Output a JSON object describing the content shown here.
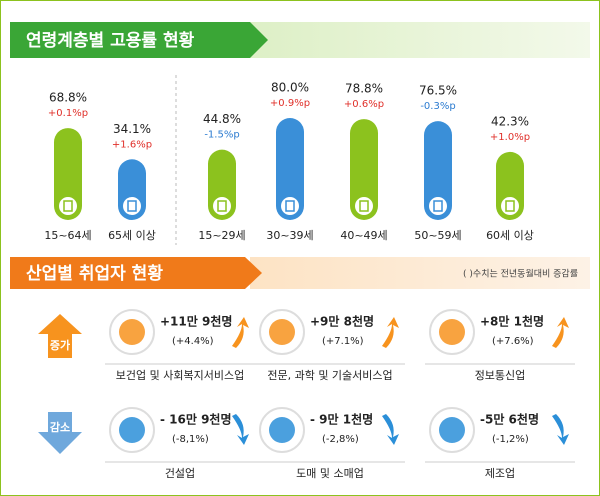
{
  "chart_data": {
    "type": "bar",
    "title": "연령계층별 고용률 현황",
    "categories": [
      "15~64세",
      "65세 이상",
      "15~29세",
      "30~39세",
      "40~49세",
      "50~59세",
      "60세 이상"
    ],
    "values": [
      68.8,
      34.1,
      44.8,
      80.0,
      78.8,
      76.5,
      42.3
    ],
    "value_labels": [
      "68.8%",
      "34.1%",
      "44.8%",
      "80.0%",
      "78.8%",
      "76.5%",
      "42.3%"
    ],
    "change_labels": [
      "+0.1%p",
      "+1.6%p",
      "-1.5%p",
      "+0.9%p",
      "+0.6%p",
      "-0.3%p",
      "+1.0%p"
    ],
    "colors": [
      "#8cc21e",
      "#3a8fd8",
      "#8cc21e",
      "#3a8fd8",
      "#8cc21e",
      "#3a8fd8",
      "#8cc21e"
    ]
  },
  "industry": {
    "title": "산업별 취업자 현황",
    "note": "( )수치는 전년동월대비 증감률",
    "increase": {
      "label": "증가",
      "items": [
        {
          "name": "보건업 및 사회복지서비스업",
          "amount": "+11만 9천명",
          "rate": "(+4.4%)"
        },
        {
          "name": "전문, 과학 및 기술서비스업",
          "amount": "+9만 8천명",
          "rate": "(+7.1%)"
        },
        {
          "name": "정보통신업",
          "amount": "+8만 1천명",
          "rate": "(+7.6%)"
        }
      ]
    },
    "decrease": {
      "label": "감소",
      "items": [
        {
          "name": "건설업",
          "amount": "- 16만 9천명",
          "rate": "(-8,1%)"
        },
        {
          "name": "도매 및 소매업",
          "amount": "- 9만 1천명",
          "rate": "(-2,8%)"
        },
        {
          "name": "제조업",
          "amount": "-5만 6천명",
          "rate": "(-1,2%)"
        }
      ]
    }
  }
}
